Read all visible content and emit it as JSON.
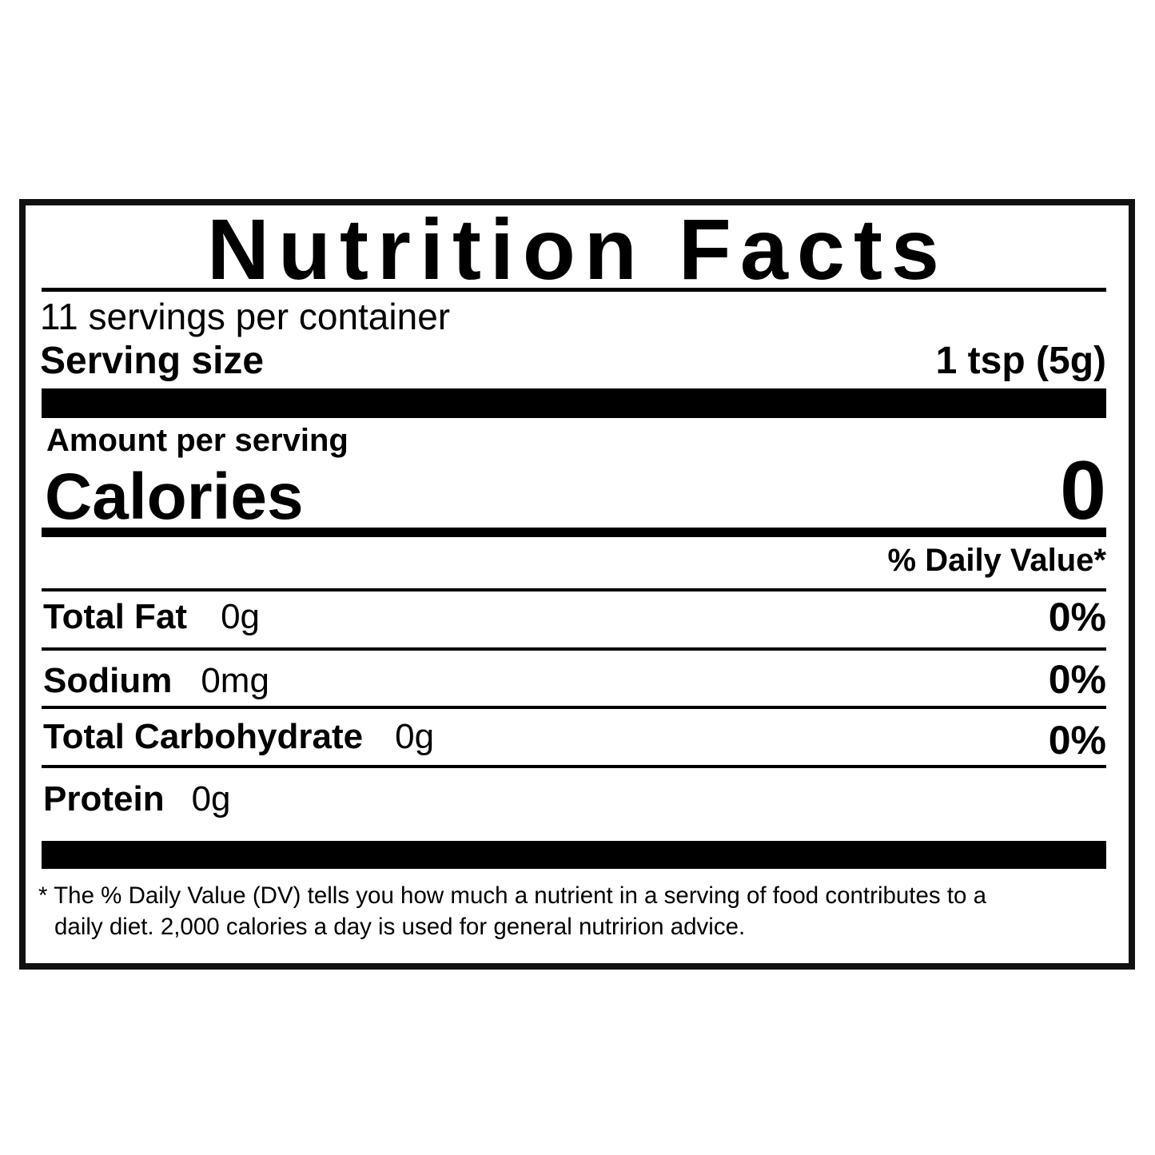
{
  "label": {
    "title": "Nutrition Facts",
    "servings_per_container": "11 servings per container",
    "serving_size_label": "Serving size",
    "serving_size_value": "1 tsp (5g)",
    "amount_per_serving": "Amount per serving",
    "calories_label": "Calories",
    "calories_value": "0",
    "daily_value_header": "% Daily Value*",
    "nutrients": [
      {
        "name": "Total Fat",
        "amount": "0g",
        "dv": "0%"
      },
      {
        "name": "Sodium",
        "amount": "0mg",
        "dv": "0%"
      },
      {
        "name": "Total Carbohydrate",
        "amount": "0g",
        "dv": "0%"
      },
      {
        "name": "Protein",
        "amount": "0g",
        "dv": ""
      }
    ],
    "footnote_line1": "* The % Daily Value (DV) tells you how much a nutrient in a serving of food contributes to a",
    "footnote_line2": "daily diet. 2,000 calories a day is used for general nutririon advice."
  }
}
